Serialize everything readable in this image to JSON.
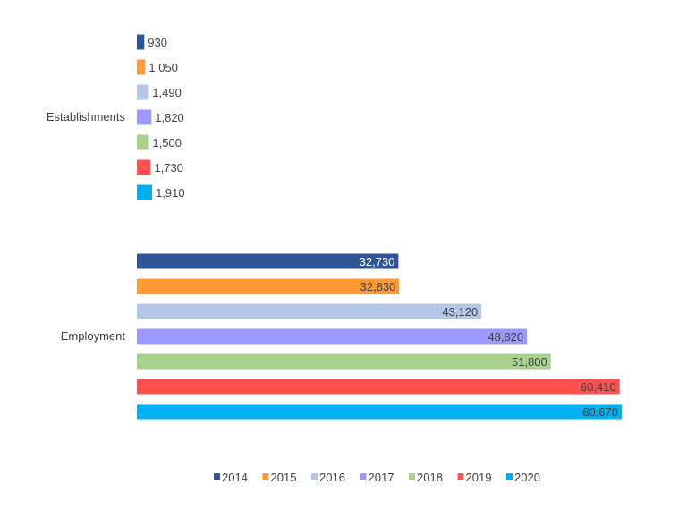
{
  "chart_data": {
    "type": "bar",
    "orientation": "horizontal",
    "categories": [
      "Establishments",
      "Employment"
    ],
    "series": [
      {
        "name": "2014",
        "color": "#2F5597",
        "values": [
          930,
          32730
        ],
        "labels": [
          "930",
          "32,730"
        ]
      },
      {
        "name": "2015",
        "color": "#FF9933",
        "values": [
          1050,
          32830
        ],
        "labels": [
          "1,050",
          "32,830"
        ]
      },
      {
        "name": "2016",
        "color": "#B4C7E7",
        "values": [
          1490,
          43120
        ],
        "labels": [
          "1,490",
          "43,120"
        ]
      },
      {
        "name": "2017",
        "color": "#9999FF",
        "values": [
          1820,
          48820
        ],
        "labels": [
          "1,820",
          "48,820"
        ]
      },
      {
        "name": "2018",
        "color": "#A9D18E",
        "values": [
          1500,
          51800
        ],
        "labels": [
          "1,500",
          "51,800"
        ]
      },
      {
        "name": "2019",
        "color": "#FF5050",
        "values": [
          1730,
          60410
        ],
        "labels": [
          "1,730",
          "60,410"
        ]
      },
      {
        "name": "2020",
        "color": "#00B0F0",
        "values": [
          1910,
          60670
        ],
        "labels": [
          "1,910",
          "60,670"
        ]
      }
    ],
    "title": "",
    "xlabel": "",
    "ylabel": "",
    "grid": false,
    "legend": "bottom"
  }
}
